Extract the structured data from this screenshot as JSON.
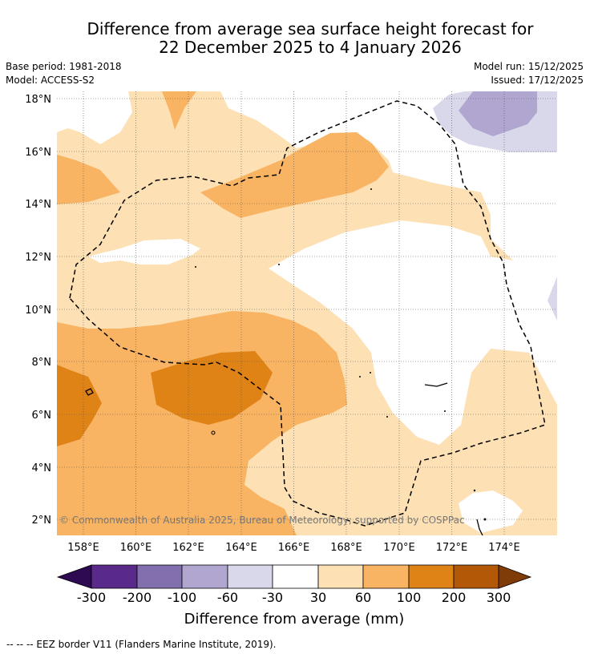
{
  "title": {
    "line1": "Difference from average sea surface height forecast for",
    "line2": "22 December 2025 to 4 January 2026"
  },
  "meta": {
    "base_period": "Base period: 1981-2018",
    "model": "Model: ACCESS-S2",
    "model_run": "Model run: 15/12/2025",
    "issued": "Issued: 17/12/2025"
  },
  "map": {
    "lat_labels": [
      "18°N",
      "16°N",
      "14°N",
      "12°N",
      "10°N",
      "8°N",
      "6°N",
      "4°N",
      "2°N"
    ],
    "lon_labels": [
      "158°E",
      "160°E",
      "162°E",
      "164°E",
      "166°E",
      "168°E",
      "170°E",
      "172°E",
      "174°E"
    ],
    "copyright": "© Commonwealth of Australia 2025, Bureau of Meteorology; supported by COSPPac"
  },
  "colorbar": {
    "labels": [
      "-300",
      "-200",
      "-100",
      "-60",
      "-30",
      "30",
      "60",
      "100",
      "200",
      "300"
    ],
    "colors": [
      "#2d0a52",
      "#5a2a8a",
      "#8270ae",
      "#b0a6d0",
      "#d9d8ea",
      "#ffffff",
      "#fde0b4",
      "#f8b462",
      "#e08317",
      "#b35806",
      "#7f3b08"
    ],
    "title": "Difference from average (mm)"
  },
  "footnote": "--  --  -- EEZ border V11 (Flanders Marine Institute, 2019)."
}
